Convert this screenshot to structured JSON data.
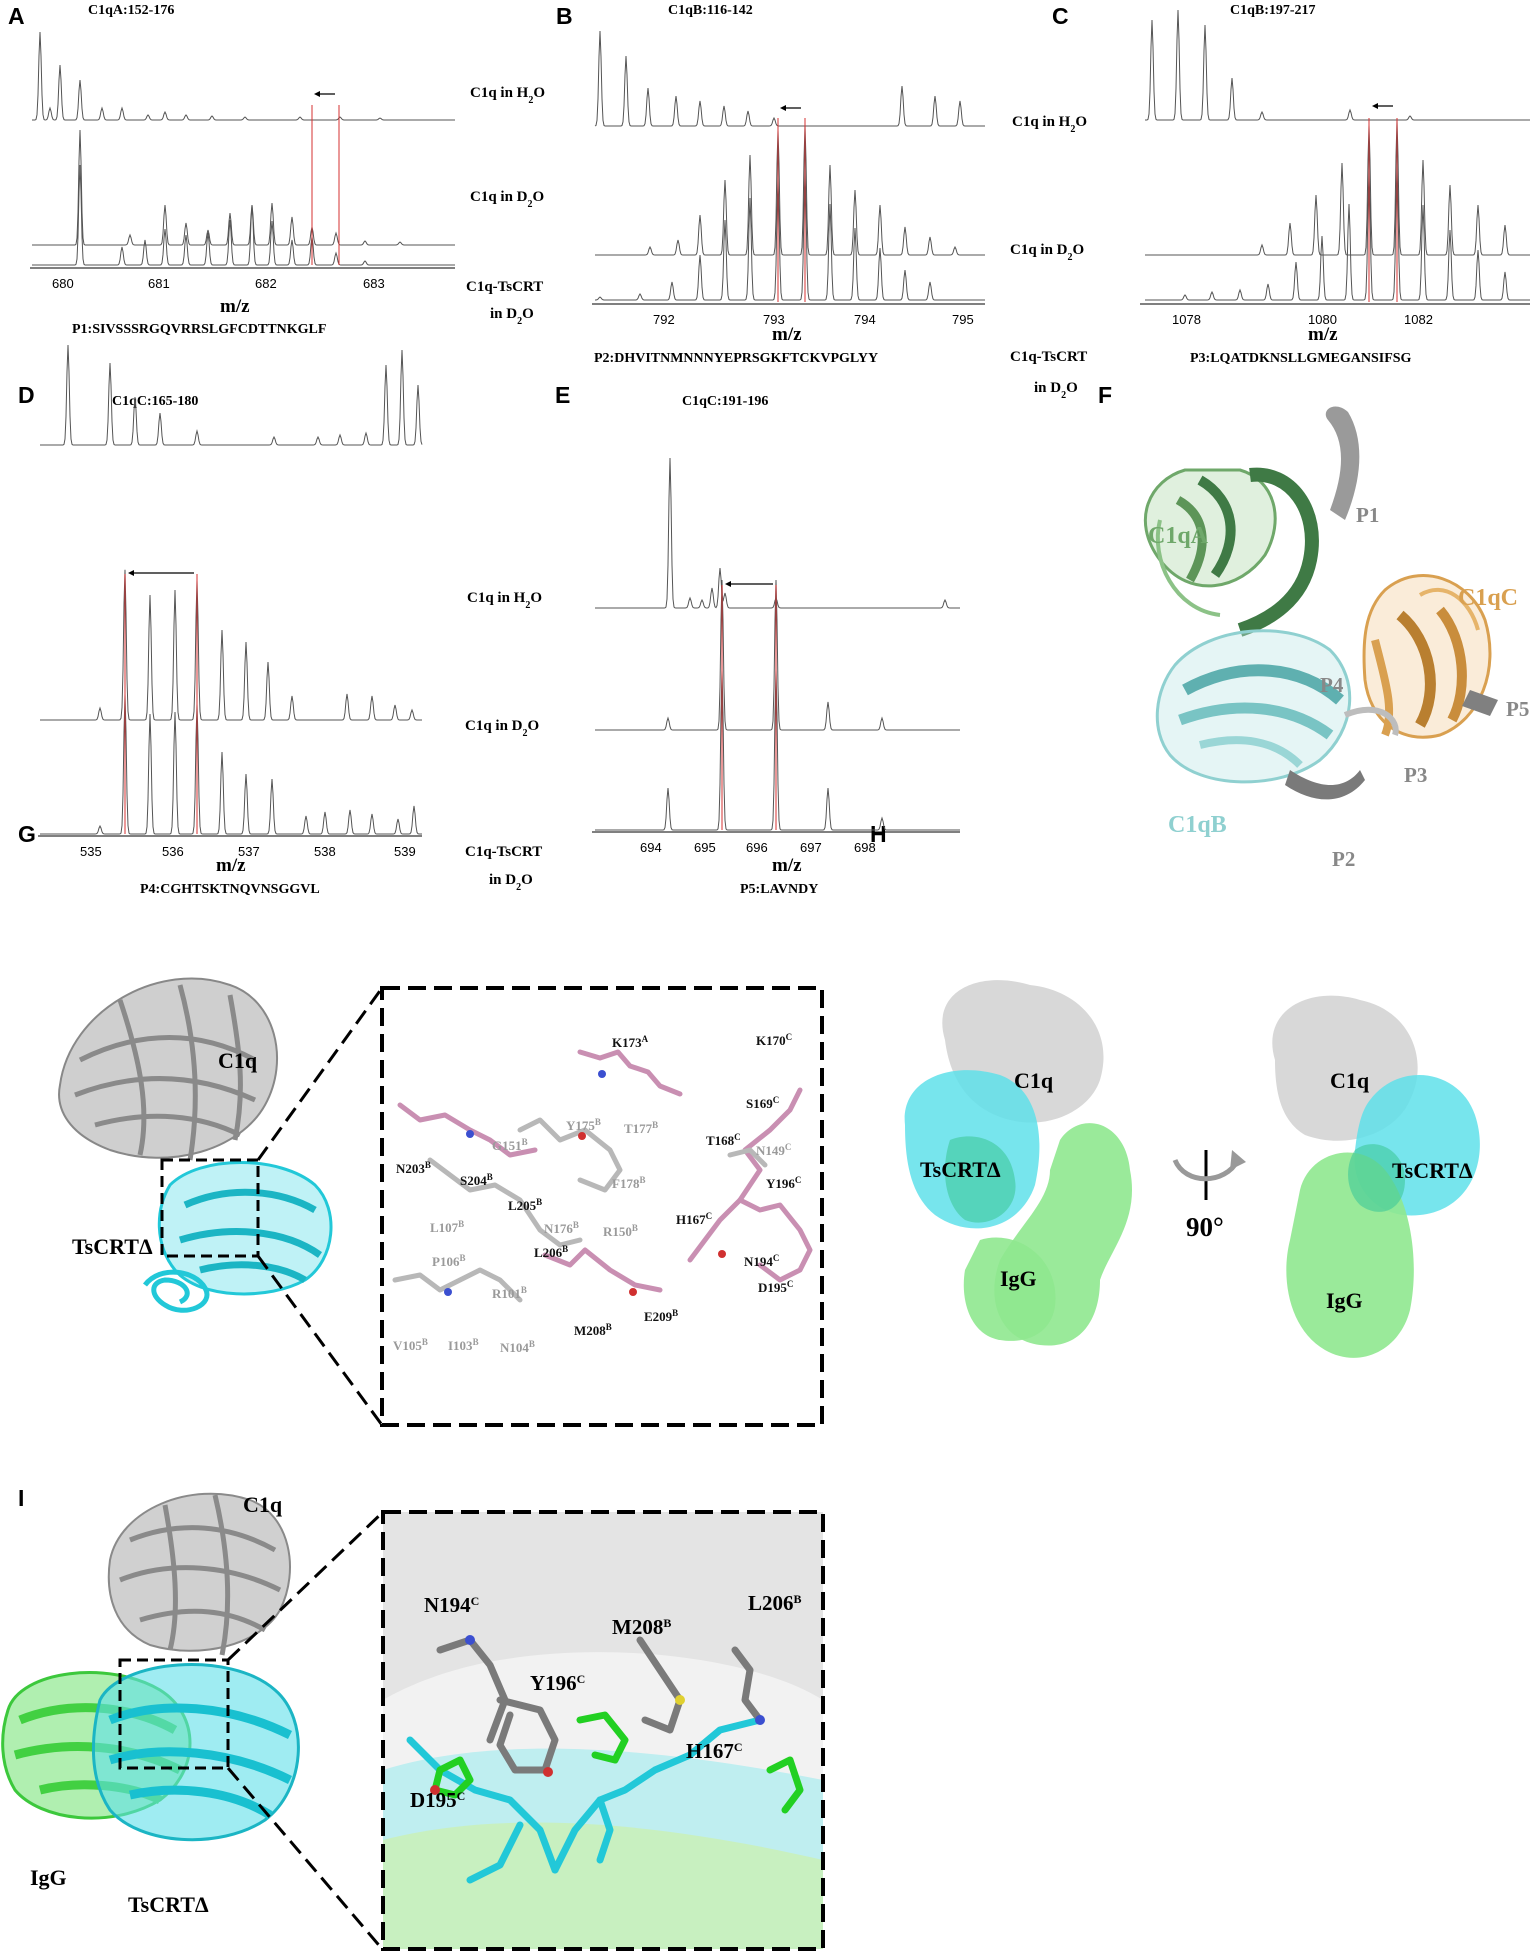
{
  "figure": {
    "panels": {
      "A": {
        "letter": "A",
        "title": "C1qA:152-176",
        "peptide": "P1:SIVSSSRGQVRRSLGFCDTTNKGLF",
        "ticks": [
          "680",
          "681",
          "682",
          "683"
        ],
        "axis_label": "m/z"
      },
      "B": {
        "letter": "B",
        "title": "C1qB:116-142",
        "peptide": "P2:DHVITNMNNNYEPRSGKFTCKVPGLYY",
        "ticks": [
          "792",
          "793",
          "794",
          "795"
        ],
        "axis_label": "m/z"
      },
      "C": {
        "letter": "C",
        "title": "C1qB:197-217",
        "peptide": "P3:LQATDKNSLLGMEGANSIFSG",
        "ticks": [
          "1078",
          "1080",
          "1082"
        ],
        "axis_label": "m/z"
      },
      "D": {
        "letter": "D",
        "title": "C1qC:165-180",
        "peptide": "P4:CGHTSKTNQVNSGGVL",
        "ticks": [
          "535",
          "536",
          "537",
          "538",
          "539"
        ],
        "axis_label": "m/z"
      },
      "E": {
        "letter": "E",
        "title": "C1qC:191-196",
        "peptide": "P5:LAVNDY",
        "ticks": [
          "694",
          "695",
          "696",
          "697",
          "698"
        ],
        "axis_label": "m/z"
      },
      "F": {
        "letter": "F",
        "labels": [
          "C1qA",
          "C1qB",
          "C1qC",
          "P1",
          "P2",
          "P3",
          "P4",
          "P5"
        ]
      },
      "G": {
        "letter": "G",
        "mol_c1q": "C1q",
        "mol_tscrt": "TsCRTΔ",
        "residues_black": [
          "K173A",
          "K170C",
          "S169C",
          "T168C",
          "Y196C",
          "N203B",
          "S204B",
          "L205B",
          "H167C",
          "L206B",
          "N194C",
          "D195C",
          "M208B",
          "E209B"
        ],
        "residues_grey": [
          "G151B",
          "Y175B",
          "T177B",
          "N149C",
          "F178B",
          "L107B",
          "N176B",
          "R150B",
          "P106B",
          "R101B",
          "V105B",
          "I103B",
          "N104B"
        ]
      },
      "H": {
        "letter": "H",
        "c1q": "C1q",
        "tscrt": "TsCRTΔ",
        "igg": "IgG",
        "rotation": "90°"
      },
      "I": {
        "letter": "I",
        "c1q": "C1q",
        "igg": "IgG",
        "tscrt": "TsCRTΔ",
        "residues": [
          "N194C",
          "Y196C",
          "M208B",
          "L206B",
          "D195C",
          "H167C"
        ]
      }
    },
    "conditions": {
      "h2o": "C1q in H2O",
      "d2o": "C1q in D2O",
      "complex_line1": "C1q-TsCRT",
      "complex_line2": "in D2O"
    },
    "colors": {
      "c1qA": "#6fa86a",
      "c1qB": "#8fd0d0",
      "c1qC": "#d9a050",
      "peptide": "#888888",
      "tscrt": "#22c8d8",
      "igg": "#8fe88f",
      "c1q_surface": "#d8d8d8",
      "stick_pink": "#c98fb2",
      "marker": "#d63030"
    }
  }
}
